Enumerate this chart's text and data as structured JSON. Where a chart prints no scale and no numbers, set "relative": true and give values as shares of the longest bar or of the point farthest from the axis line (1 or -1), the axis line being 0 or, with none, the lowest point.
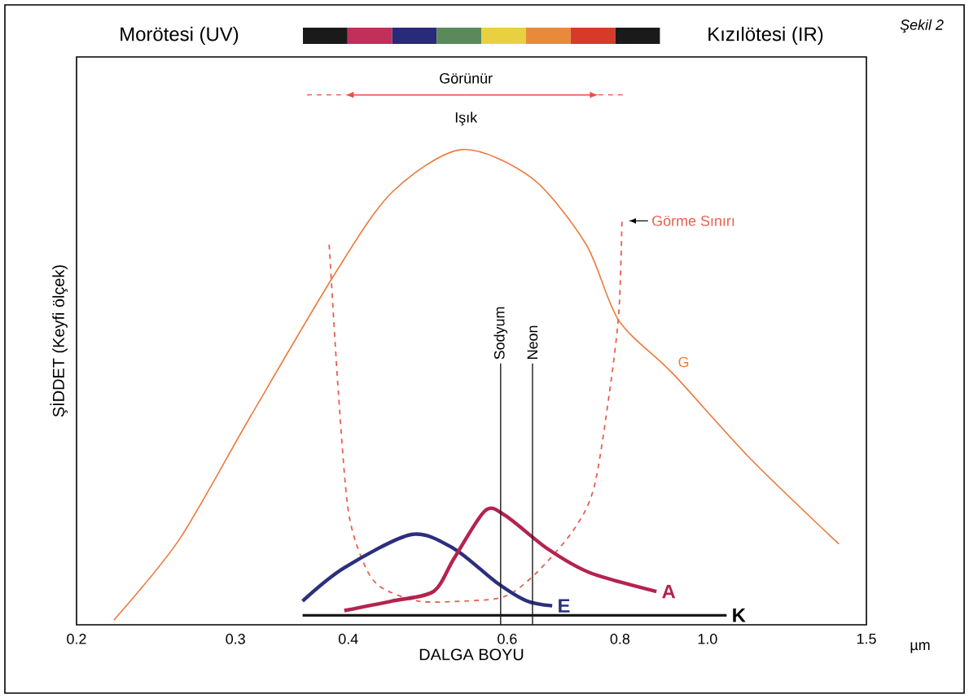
{
  "chart_data": {
    "type": "line",
    "relative": true,
    "log": "x",
    "xlabel": "DALGA BOYU",
    "ylabel": "ŞİDDET (Keyfi ölçek)",
    "xlim": [
      0.2,
      1.5
    ],
    "xticks": [
      0.2,
      0.3,
      0.4,
      0.6,
      0.8,
      {
        "value": 1,
        "label": "1.0"
      },
      1.5
    ],
    "annotations": [
      "Morötesi (UV)",
      "Kızılötesi (IR)",
      "*Şekil 2*",
      "Görünür",
      "Işık",
      "µm"
    ],
    "grid": false,
    "marker": "none",
    "series": [
      {
        "name": "G",
        "color": "#ec7a3e",
        "line_style": "solid",
        "x": [
          0.22,
          0.26,
          0.312,
          0.387,
          0.447,
          0.534,
          0.639,
          0.734,
          0.798,
          0.914,
          1.115,
          1.398
        ],
        "values": [
          0.01,
          0.18,
          0.44,
          0.74,
          0.91,
          1.0,
          0.94,
          0.8,
          0.64,
          0.53,
          0.35,
          0.17
        ]
      },
      {
        "name": "Görme Sınırı",
        "color": "#e5604f",
        "line_style": "dashed",
        "x": [
          0.381,
          0.39,
          0.4,
          0.416,
          0.434,
          0.478,
          0.538,
          0.597,
          0.647,
          0.711,
          0.749,
          0.779,
          0.798,
          0.804
        ],
        "values": [
          0.8,
          0.49,
          0.24,
          0.13,
          0.08,
          0.05,
          0.05,
          0.06,
          0.11,
          0.2,
          0.29,
          0.49,
          0.66,
          0.85
        ]
      },
      {
        "name": "E",
        "color": "#2c2f7c",
        "line_style": "solid",
        "x": [
          0.356,
          0.396,
          0.47,
          0.524,
          0.583,
          0.631,
          0.673
        ],
        "values": [
          0.05,
          0.12,
          0.19,
          0.16,
          0.09,
          0.05,
          0.04
        ]
      },
      {
        "name": "A",
        "color": "#b4234e",
        "line_style": "solid",
        "x": [
          0.396,
          0.447,
          0.497,
          0.524,
          0.567,
          0.597,
          0.665,
          0.74,
          0.878
        ],
        "values": [
          0.03,
          0.05,
          0.07,
          0.14,
          0.24,
          0.23,
          0.16,
          0.11,
          0.07
        ]
      },
      {
        "name": "K",
        "color": "#1a1a1a",
        "line_style": "solid",
        "x": [
          0.356,
          1.05
        ],
        "values": [
          0.02,
          0.02
        ]
      }
    ],
    "ref_lines": [
      {
        "axis": "x",
        "value": 0.59,
        "label": "Sodyum",
        "color": "#1a1a1a"
      },
      {
        "axis": "x",
        "value": 0.64,
        "label": "Neon",
        "color": "#1a1a1a"
      }
    ]
  }
}
